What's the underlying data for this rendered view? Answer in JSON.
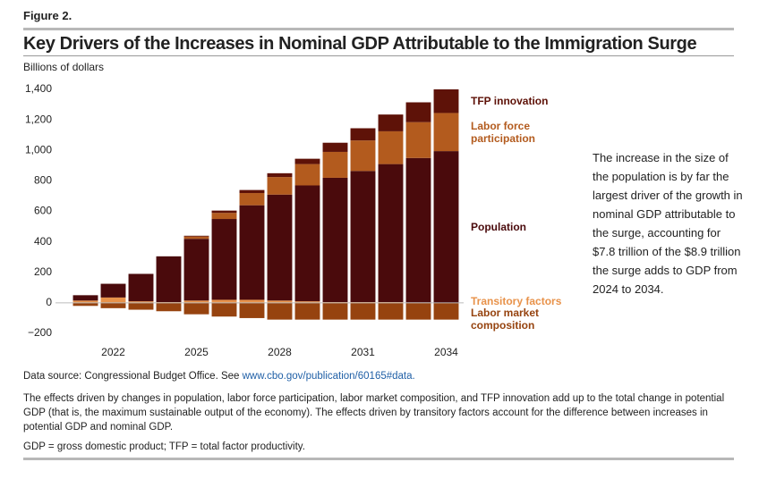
{
  "figure_label": "Figure 2.",
  "chart_data": {
    "type": "stacked_bar",
    "title": "Key Drivers of the Increases in Nominal GDP Attributable to the Immigration Surge",
    "y_label": "Billions of dollars",
    "annotation": "The increase in the size of the population is by far the largest driver of the growth in nominal GDP attributable to the surge, accounting for $7.8 trillion of the $8.9 trillion the surge adds to GDP from 2024 to 2034.",
    "categories": [
      null,
      "2022",
      null,
      null,
      "2025",
      null,
      null,
      "2028",
      null,
      null,
      "2031",
      null,
      null,
      "2034"
    ],
    "series": [
      {
        "name": "TFP innovation",
        "color": "#5e1208",
        "values": [
          0,
          0,
          0,
          0,
          5,
          15,
          20,
          25,
          35,
          60,
          80,
          110,
          130,
          155
        ]
      },
      {
        "name": "Labor force participation",
        "color": "#b35b1e",
        "values": [
          0,
          0,
          0,
          0,
          15,
          40,
          80,
          115,
          140,
          170,
          200,
          215,
          235,
          250
        ]
      },
      {
        "name": "Population",
        "color": "#4a0a0c",
        "values": [
          35,
          90,
          180,
          300,
          405,
          530,
          620,
          695,
          760,
          815,
          860,
          905,
          947,
          993
        ]
      },
      {
        "name": "Transitory factors",
        "color": "#e8924a",
        "values": [
          15,
          35,
          10,
          5,
          15,
          20,
          20,
          15,
          10,
          5,
          5,
          5,
          3,
          2
        ]
      },
      {
        "name": "Labor market composition",
        "color": "#96430f",
        "values": [
          -20,
          -35,
          -45,
          -55,
          -75,
          -90,
          -100,
          -110,
          -110,
          -110,
          -110,
          -110,
          -110,
          -110
        ]
      }
    ],
    "ylim": [
      -200,
      1400
    ],
    "yticks": [
      {
        "value": -200,
        "label": "−200"
      },
      0,
      200,
      400,
      600,
      800,
      {
        "value": 1000,
        "label": "1,000"
      },
      {
        "value": 1200,
        "label": "1,200"
      },
      {
        "value": 1400,
        "label": "1,400"
      }
    ],
    "grid": false
  },
  "source": {
    "text": "Data source: Congressional Budget Office. See ",
    "link": "www.cbo.gov/publication/60165#data."
  },
  "notes": "The effects driven by changes in population, labor force participation, labor market composition, and TFP innovation add up to the total change in potential GDP (that is, the maximum sustainable output of the economy). The effects driven by transitory factors account for the difference between increases in potential GDP and nominal GDP.",
  "abbreviations": "GDP = gross domestic product; TFP = total factor productivity."
}
